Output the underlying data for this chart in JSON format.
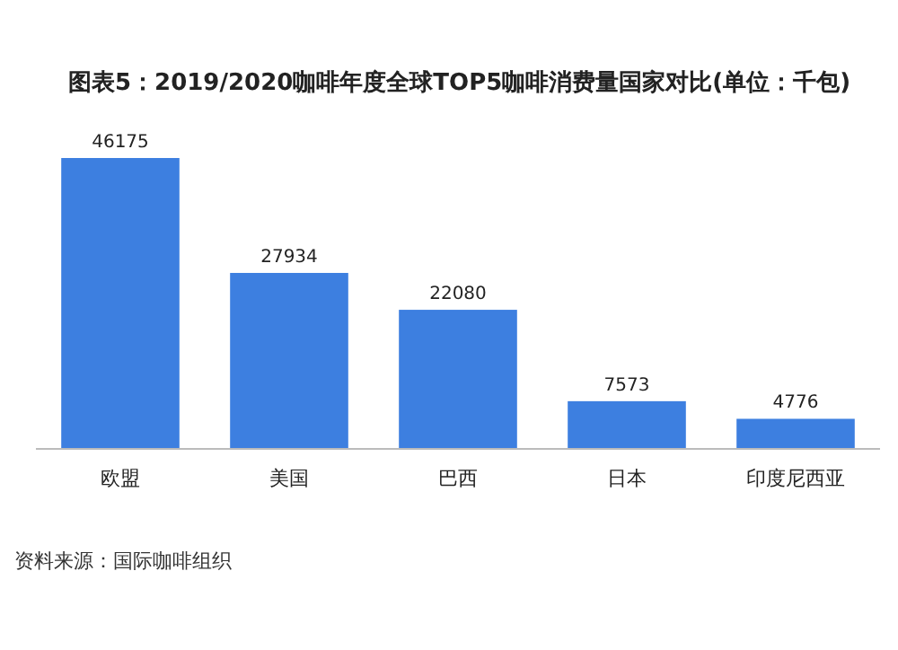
{
  "chart_data": {
    "type": "bar",
    "title": "图表5：2019/2020咖啡年度全球TOP5咖啡消费量国家对比(单位：千包)",
    "categories": [
      "欧盟",
      "美国",
      "巴西",
      "日本",
      "印度尼西亚"
    ],
    "values": [
      46175,
      27934,
      22080,
      7573,
      4776
    ],
    "color": "#3d7fe0",
    "data_labels": true,
    "annotations": [
      "资料来源：国际咖啡组织"
    ]
  }
}
